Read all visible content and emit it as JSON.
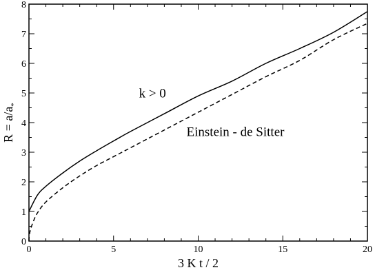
{
  "chart_data": {
    "type": "line",
    "xlabel": "3 K t / 2",
    "ylabel": "R = a/a",
    "ylabel_subscript": "*",
    "xlim": [
      0,
      20
    ],
    "ylim": [
      0,
      8
    ],
    "xticks": [
      0,
      5,
      10,
      15,
      20
    ],
    "xtick_labels": [
      "0",
      "5",
      "10",
      "15",
      "20"
    ],
    "yticks": [
      0,
      1,
      2,
      3,
      4,
      5,
      6,
      7,
      8
    ],
    "ytick_labels": [
      "0",
      "1",
      "2",
      "3",
      "4",
      "5",
      "6",
      "7",
      "8"
    ],
    "grid": false,
    "series": [
      {
        "style": "solid",
        "x": [
          0,
          0.5,
          1,
          2,
          3,
          4,
          5,
          6,
          8,
          10,
          12,
          14,
          16,
          18,
          20
        ],
        "y": [
          1.0,
          1.55,
          1.85,
          2.3,
          2.7,
          3.05,
          3.38,
          3.7,
          4.3,
          4.9,
          5.4,
          6.0,
          6.5,
          7.05,
          7.75
        ]
      },
      {
        "style": "dashed",
        "x": [
          0,
          0.02,
          0.1,
          0.25,
          0.5,
          1,
          2,
          3,
          4,
          5,
          6,
          8,
          10,
          12,
          14,
          16,
          18,
          20
        ],
        "y": [
          0.0,
          0.2,
          0.4,
          0.65,
          0.95,
          1.32,
          1.8,
          2.2,
          2.55,
          2.85,
          3.15,
          3.75,
          4.35,
          4.95,
          5.55,
          6.1,
          6.8,
          7.35
        ]
      }
    ],
    "annotations": [
      {
        "text": "k > 0",
        "x": 7.3,
        "y": 4.85
      },
      {
        "text": "Einstein - de Sitter",
        "x": 12.2,
        "y": 3.55
      }
    ]
  }
}
